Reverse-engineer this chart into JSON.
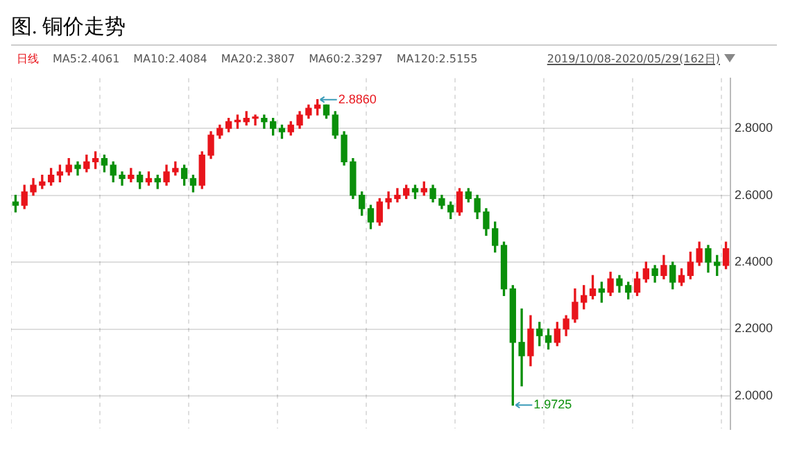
{
  "chart_data": {
    "type": "candlestick",
    "title": "图. 铜价走势",
    "annotations": [
      "日线",
      "MA5:2.4061",
      "MA10:2.4084",
      "MA20:2.3807",
      "MA60:2.3297",
      "MA120:2.5155",
      "2019/10/08-2020/05/29(162日)",
      "2.8860",
      "1.9725"
    ],
    "categories": [
      null,
      null,
      null,
      null,
      null,
      null,
      null,
      null,
      null,
      null,
      null,
      null,
      null,
      null,
      null,
      null,
      null,
      null,
      null,
      null,
      null,
      null,
      null,
      null,
      null,
      null,
      null,
      null,
      null,
      null,
      null,
      null,
      null,
      null,
      null,
      null,
      null,
      null,
      null,
      null,
      null,
      null,
      null,
      null,
      null,
      null,
      null,
      null,
      null,
      null,
      null,
      null,
      null,
      null,
      null,
      null,
      null,
      null,
      null,
      null,
      null,
      null,
      null,
      null,
      null,
      null,
      null,
      null,
      null,
      null,
      null,
      null,
      null,
      null,
      null,
      null,
      null,
      null,
      null,
      null,
      null
    ],
    "ohlc": [
      [
        2.58,
        2.6,
        2.55,
        2.57
      ],
      [
        2.57,
        2.63,
        2.56,
        2.61
      ],
      [
        2.61,
        2.65,
        2.6,
        2.63
      ],
      [
        2.63,
        2.66,
        2.62,
        2.64
      ],
      [
        2.64,
        2.68,
        2.63,
        2.66
      ],
      [
        2.66,
        2.69,
        2.64,
        2.67
      ],
      [
        2.67,
        2.71,
        2.66,
        2.69
      ],
      [
        2.69,
        2.7,
        2.66,
        2.68
      ],
      [
        2.68,
        2.72,
        2.67,
        2.7
      ],
      [
        2.7,
        2.73,
        2.68,
        2.71
      ],
      [
        2.71,
        2.72,
        2.67,
        2.69
      ],
      [
        2.69,
        2.7,
        2.64,
        2.66
      ],
      [
        2.66,
        2.67,
        2.63,
        2.65
      ],
      [
        2.65,
        2.68,
        2.64,
        2.66
      ],
      [
        2.66,
        2.67,
        2.62,
        2.64
      ],
      [
        2.64,
        2.67,
        2.63,
        2.65
      ],
      [
        2.65,
        2.66,
        2.62,
        2.64
      ],
      [
        2.64,
        2.69,
        2.63,
        2.67
      ],
      [
        2.67,
        2.7,
        2.66,
        2.68
      ],
      [
        2.68,
        2.69,
        2.63,
        2.65
      ],
      [
        2.65,
        2.66,
        2.61,
        2.63
      ],
      [
        2.63,
        2.73,
        2.62,
        2.72
      ],
      [
        2.72,
        2.79,
        2.71,
        2.78
      ],
      [
        2.78,
        2.81,
        2.77,
        2.8
      ],
      [
        2.8,
        2.83,
        2.79,
        2.82
      ],
      [
        2.82,
        2.84,
        2.8,
        2.82
      ],
      [
        2.82,
        2.85,
        2.81,
        2.83
      ],
      [
        2.83,
        2.84,
        2.81,
        2.83
      ],
      [
        2.83,
        2.84,
        2.8,
        2.82
      ],
      [
        2.82,
        2.83,
        2.78,
        2.8
      ],
      [
        2.8,
        2.81,
        2.77,
        2.79
      ],
      [
        2.79,
        2.82,
        2.78,
        2.81
      ],
      [
        2.81,
        2.85,
        2.8,
        2.84
      ],
      [
        2.84,
        2.87,
        2.83,
        2.86
      ],
      [
        2.86,
        2.886,
        2.84,
        2.87
      ],
      [
        2.87,
        2.87,
        2.83,
        2.84
      ],
      [
        2.84,
        2.85,
        2.77,
        2.78
      ],
      [
        2.78,
        2.79,
        2.69,
        2.7
      ],
      [
        2.7,
        2.71,
        2.59,
        2.6
      ],
      [
        2.6,
        2.61,
        2.54,
        2.56
      ],
      [
        2.56,
        2.57,
        2.5,
        2.52
      ],
      [
        2.52,
        2.59,
        2.51,
        2.58
      ],
      [
        2.58,
        2.61,
        2.56,
        2.59
      ],
      [
        2.59,
        2.62,
        2.58,
        2.6
      ],
      [
        2.6,
        2.63,
        2.59,
        2.62
      ],
      [
        2.62,
        2.63,
        2.59,
        2.61
      ],
      [
        2.61,
        2.64,
        2.6,
        2.62
      ],
      [
        2.62,
        2.63,
        2.58,
        2.59
      ],
      [
        2.59,
        2.6,
        2.56,
        2.57
      ],
      [
        2.57,
        2.58,
        2.53,
        2.55
      ],
      [
        2.55,
        2.62,
        2.54,
        2.61
      ],
      [
        2.61,
        2.62,
        2.58,
        2.59
      ],
      [
        2.59,
        2.6,
        2.53,
        2.55
      ],
      [
        2.55,
        2.56,
        2.48,
        2.5
      ],
      [
        2.5,
        2.52,
        2.43,
        2.45
      ],
      [
        2.45,
        2.46,
        2.3,
        2.32
      ],
      [
        2.32,
        2.33,
        1.9725,
        2.16
      ],
      [
        2.16,
        2.26,
        2.03,
        2.12
      ],
      [
        2.12,
        2.24,
        2.09,
        2.2
      ],
      [
        2.2,
        2.22,
        2.15,
        2.18
      ],
      [
        2.18,
        2.2,
        2.14,
        2.16
      ],
      [
        2.16,
        2.22,
        2.15,
        2.2
      ],
      [
        2.2,
        2.24,
        2.18,
        2.23
      ],
      [
        2.23,
        2.32,
        2.22,
        2.28
      ],
      [
        2.28,
        2.33,
        2.26,
        2.3
      ],
      [
        2.3,
        2.36,
        2.29,
        2.32
      ],
      [
        2.32,
        2.34,
        2.28,
        2.31
      ],
      [
        2.31,
        2.37,
        2.3,
        2.35
      ],
      [
        2.35,
        2.36,
        2.31,
        2.33
      ],
      [
        2.33,
        2.34,
        2.29,
        2.31
      ],
      [
        2.31,
        2.37,
        2.3,
        2.35
      ],
      [
        2.35,
        2.4,
        2.34,
        2.38
      ],
      [
        2.38,
        2.39,
        2.34,
        2.36
      ],
      [
        2.36,
        2.42,
        2.35,
        2.39
      ],
      [
        2.39,
        2.4,
        2.32,
        2.34
      ],
      [
        2.34,
        2.38,
        2.33,
        2.36
      ],
      [
        2.36,
        2.43,
        2.35,
        2.4
      ],
      [
        2.4,
        2.46,
        2.39,
        2.44
      ],
      [
        2.44,
        2.45,
        2.37,
        2.4
      ],
      [
        2.4,
        2.42,
        2.36,
        2.39
      ],
      [
        2.39,
        2.46,
        2.38,
        2.44
      ]
    ],
    "colors": [
      "#0a8f0a",
      "#e8141b",
      "#e8141b",
      "#e8141b",
      "#e8141b",
      "#e8141b",
      "#e8141b",
      "#0a8f0a",
      "#e8141b",
      "#e8141b",
      "#0a8f0a",
      "#0a8f0a",
      "#0a8f0a",
      "#e8141b",
      "#0a8f0a",
      "#e8141b",
      "#0a8f0a",
      "#e8141b",
      "#e8141b",
      "#0a8f0a",
      "#0a8f0a",
      "#e8141b",
      "#e8141b",
      "#e8141b",
      "#e8141b",
      "#e8141b",
      "#e8141b",
      "#e8141b",
      "#0a8f0a",
      "#0a8f0a",
      "#0a8f0a",
      "#e8141b",
      "#e8141b",
      "#e8141b",
      "#e8141b",
      "#0a8f0a",
      "#0a8f0a",
      "#0a8f0a",
      "#0a8f0a",
      "#0a8f0a",
      "#0a8f0a",
      "#e8141b",
      "#e8141b",
      "#e8141b",
      "#e8141b",
      "#0a8f0a",
      "#e8141b",
      "#0a8f0a",
      "#0a8f0a",
      "#0a8f0a",
      "#e8141b",
      "#0a8f0a",
      "#0a8f0a",
      "#0a8f0a",
      "#0a8f0a",
      "#0a8f0a",
      "#0a8f0a",
      "#0a8f0a",
      "#e8141b",
      "#0a8f0a",
      "#0a8f0a",
      "#e8141b",
      "#e8141b",
      "#e8141b",
      "#e8141b",
      "#e8141b",
      "#0a8f0a",
      "#e8141b",
      "#0a8f0a",
      "#0a8f0a",
      "#e8141b",
      "#e8141b",
      "#0a8f0a",
      "#e8141b",
      "#0a8f0a",
      "#e8141b",
      "#e8141b",
      "#e8141b",
      "#0a8f0a",
      "#0a8f0a",
      "#e8141b"
    ],
    "ylim": [
      1.9,
      2.95
    ],
    "yticks": [
      {
        "value": 2.0,
        "label": "2.0000"
      },
      {
        "value": 2.2,
        "label": "2.2000"
      },
      {
        "value": 2.4,
        "label": "2.4000"
      },
      {
        "value": 2.6,
        "label": "2.6000"
      },
      {
        "value": 2.8,
        "label": "2.8000"
      }
    ],
    "grid": true
  }
}
